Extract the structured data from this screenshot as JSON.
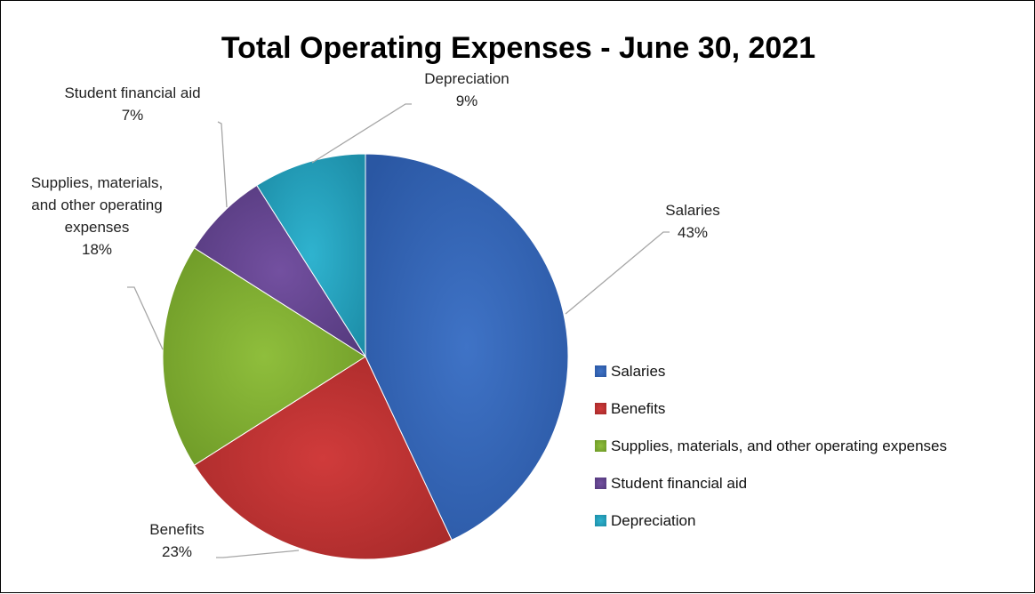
{
  "chart_data": {
    "type": "pie",
    "title": "Total Operating Expenses - June 30, 2021",
    "slices": [
      {
        "name": "Salaries",
        "value": 43,
        "label_lines": [
          "Salaries",
          "43%"
        ],
        "color": "#3f73c6",
        "color_dark": "#2a57a3"
      },
      {
        "name": "Benefits",
        "value": 23,
        "label_lines": [
          "Benefits",
          "23%"
        ],
        "color": "#d03b3b",
        "color_dark": "#a82a2a"
      },
      {
        "name": "Supplies, materials, and other operating expenses",
        "value": 18,
        "label_lines": [
          "Supplies, materials,",
          "and other operating",
          "expenses",
          "18%"
        ],
        "color": "#8fbe3c",
        "color_dark": "#6e9a27"
      },
      {
        "name": "Student financial aid",
        "value": 7,
        "label_lines": [
          "Student financial aid",
          "7%"
        ],
        "color": "#7350a0",
        "color_dark": "#553a7e"
      },
      {
        "name": "Depreciation",
        "value": 9,
        "label_lines": [
          "Depreciation",
          "9%"
        ],
        "color": "#2fb3cf",
        "color_dark": "#1d8ea8"
      }
    ],
    "legend": {
      "position": "right",
      "entries": [
        "Salaries",
        "Benefits",
        "Supplies, materials, and other operating expenses",
        "Student financial aid",
        "Depreciation"
      ]
    },
    "start_angle_deg": 0,
    "direction": "clockwise"
  }
}
